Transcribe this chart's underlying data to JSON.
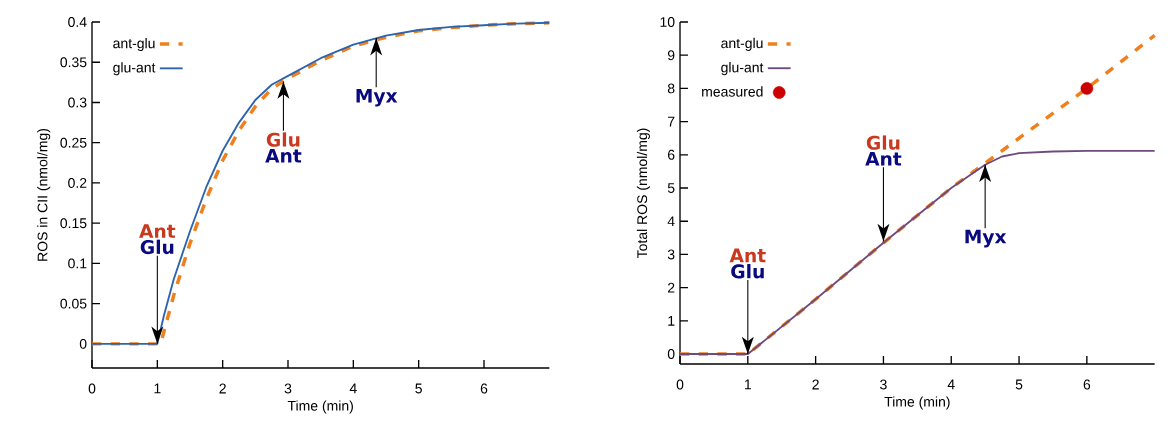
{
  "chart_data": [
    {
      "type": "line",
      "xlabel": "Time (min)",
      "ylabel": "ROS in CII (nmol/mg)",
      "xlim": [
        0,
        7
      ],
      "ylim": [
        -0.03,
        0.4
      ],
      "xticks": [
        0,
        1,
        2,
        3,
        4,
        5,
        6
      ],
      "yticks": [
        0,
        0.05,
        0.1,
        0.15,
        0.2,
        0.25,
        0.3,
        0.35,
        0.4
      ],
      "legend": "top left",
      "grid": false,
      "marker": "none",
      "series": [
        {
          "name": "ant-glu",
          "color": "#f07f1e",
          "line_style": "dashed",
          "x": [
            0,
            1,
            1.05,
            1.1,
            1.25,
            1.5,
            1.75,
            2,
            2.25,
            2.5,
            2.75,
            3,
            3.5,
            4,
            4.5,
            5,
            5.5,
            6,
            6.5,
            7
          ],
          "values": [
            0,
            0,
            0,
            0.015,
            0.06,
            0.125,
            0.18,
            0.228,
            0.265,
            0.295,
            0.317,
            0.33,
            0.352,
            0.37,
            0.381,
            0.389,
            0.393,
            0.396,
            0.398,
            0.399
          ]
        },
        {
          "name": "glu-ant",
          "color": "#2e64ae",
          "line_style": "solid",
          "x": [
            0,
            1,
            1.1,
            1.25,
            1.5,
            1.75,
            2,
            2.25,
            2.5,
            2.75,
            3,
            3.5,
            4,
            4.5,
            5,
            5.5,
            6,
            6.5,
            7
          ],
          "values": [
            0,
            0,
            0.035,
            0.08,
            0.14,
            0.195,
            0.24,
            0.275,
            0.303,
            0.322,
            0.333,
            0.355,
            0.372,
            0.383,
            0.39,
            0.394,
            0.396,
            0.398,
            0.399
          ]
        }
      ],
      "annotations": [
        {
          "text": "Ant",
          "x": 1,
          "y": 0
        },
        "Glu",
        {
          "text": "Glu",
          "x": 2.93,
          "y": 0.326
        },
        "Ant",
        {
          "text": "Myx",
          "x": 4.35,
          "y": 0.38
        }
      ]
    },
    {
      "type": "line",
      "xlabel": "Time (min)",
      "ylabel": "Total ROS (nmol/mg)",
      "xlim": [
        0,
        7
      ],
      "ylim": [
        -0.3,
        10
      ],
      "xticks": [
        0,
        1,
        2,
        3,
        4,
        5,
        6
      ],
      "yticks": [
        0,
        1,
        2,
        3,
        4,
        5,
        6,
        7,
        8,
        9,
        10
      ],
      "legend": "top left",
      "grid": false,
      "marker": "none",
      "series": [
        {
          "name": "ant-glu",
          "color": "#f07f1e",
          "line_style": "dashed",
          "x": [
            0,
            1,
            2,
            3,
            4,
            4.5,
            5,
            6,
            7
          ],
          "values": [
            0,
            0,
            1.65,
            3.35,
            5.0,
            5.75,
            6.5,
            8.0,
            9.6
          ]
        },
        {
          "name": "glu-ant",
          "color": "#6f4a7e",
          "line_style": "solid",
          "x": [
            0,
            1,
            2,
            3,
            4,
            4.5,
            4.75,
            5,
            5.5,
            6,
            7
          ],
          "values": [
            0,
            0,
            1.65,
            3.35,
            5.0,
            5.7,
            5.95,
            6.05,
            6.1,
            6.12,
            6.12
          ]
        },
        {
          "name": "measured",
          "type": "scatter",
          "marker": "circle",
          "color": "#cc0000",
          "x": [
            6
          ],
          "values": [
            8
          ]
        }
      ],
      "annotations": [
        {
          "text": "Ant",
          "x": 1,
          "y": 0
        },
        "Glu",
        {
          "text": "Glu",
          "x": 3,
          "y": 3.4
        },
        "Ant",
        {
          "text": "Myx",
          "x": 4.5,
          "y": 5.7
        }
      ]
    }
  ]
}
